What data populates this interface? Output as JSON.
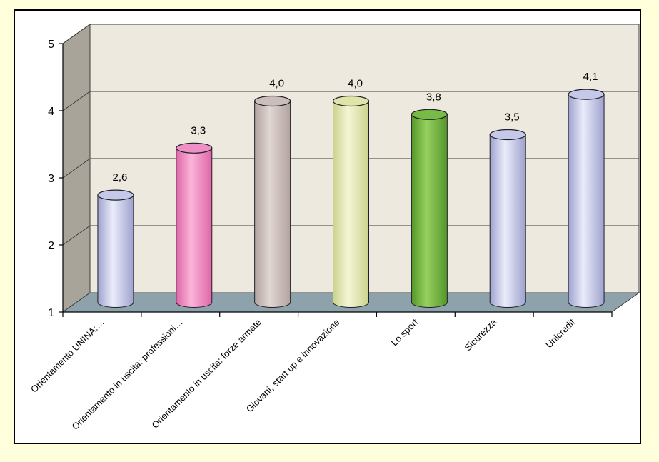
{
  "chart_data": {
    "type": "bar",
    "subtype": "3d-cylinder",
    "title": "",
    "xlabel": "",
    "ylabel": "",
    "ylim": [
      1,
      5
    ],
    "y_ticks": [
      "1",
      "2",
      "3",
      "4",
      "5"
    ],
    "grid": true,
    "legend": "none",
    "categories": [
      "Orientamento UNINA:…",
      "Orientamento in uscita: professioni…",
      "Orientamento in uscita: forze armate",
      "Giovani, start up e innovazione",
      "Lo sport",
      "Sicurezza",
      "Unicredit"
    ],
    "values": [
      2.6,
      3.3,
      4.0,
      4.0,
      3.8,
      3.5,
      4.1
    ],
    "value_labels": [
      "2,6",
      "3,3",
      "4,0",
      "4,0",
      "3,8",
      "3,5",
      "4,1"
    ],
    "bar_colors": [
      {
        "edge": "#9EA2CE",
        "mid": "#EAECF9",
        "top": "#C5C8E9"
      },
      {
        "edge": "#DD66A8",
        "mid": "#FCB4D9",
        "top": "#EE90C5"
      },
      {
        "edge": "#B2A39F",
        "mid": "#E0D6D2",
        "top": "#CBBDB9"
      },
      {
        "edge": "#CBD28D",
        "mid": "#F4F6D6",
        "top": "#DFE4A9"
      },
      {
        "edge": "#55962A",
        "mid": "#96D160",
        "top": "#77BA45"
      },
      {
        "edge": "#9EA2CE",
        "mid": "#EAECF9",
        "top": "#C5C8E9"
      },
      {
        "edge": "#9EA2CE",
        "mid": "#EAECF9",
        "top": "#C5C8E9"
      }
    ],
    "colors": {
      "page_background": "#FFFFDC",
      "frame_background": "#FFFFFF",
      "frame_border": "#000000",
      "back_wall": "#EDE9DF",
      "side_wall": "#A8A49A",
      "floor": "#8EA2AB",
      "wall_outline": "#3C3C3C",
      "gridline": "#3C3C3C",
      "axis": "#000000",
      "bar_outline": "#202028",
      "text": "#000000"
    }
  }
}
